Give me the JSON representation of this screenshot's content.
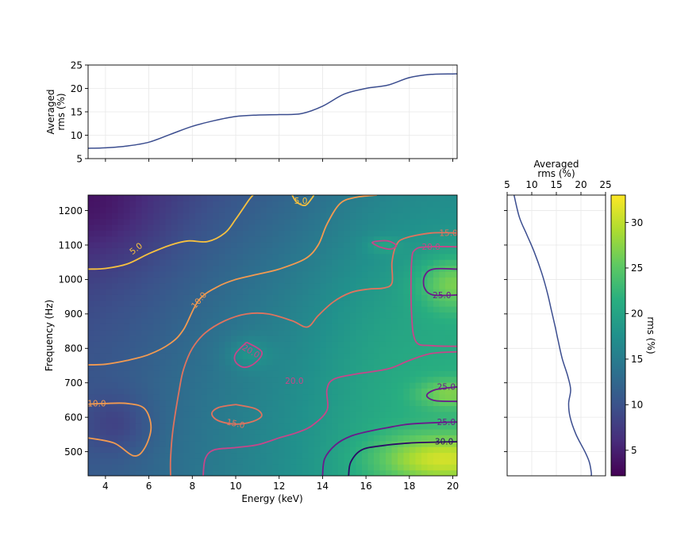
{
  "chart_data": [
    {
      "type": "line",
      "panel": "energy-profile",
      "ylabel_lines": [
        "Averaged",
        "rms (%)"
      ],
      "xlim": [
        3.2,
        20.2
      ],
      "ylim": [
        5,
        25
      ],
      "yticks": [
        5,
        10,
        15,
        20,
        25
      ],
      "grid": true,
      "series": [
        {
          "color": "#3b4d8f",
          "x": [
            3.2,
            4,
            5,
            6,
            7,
            8,
            9,
            10,
            11,
            12,
            13,
            14,
            15,
            16,
            17,
            18,
            19,
            20,
            20.2
          ],
          "y": [
            7.2,
            7.3,
            7.7,
            8.5,
            10.2,
            11.9,
            13.1,
            14.0,
            14.3,
            14.4,
            14.6,
            16.2,
            18.8,
            20.0,
            20.7,
            22.3,
            23.0,
            23.1,
            23.1
          ]
        }
      ]
    },
    {
      "type": "heatmap",
      "panel": "rms-map",
      "xlabel": "Energy (keV)",
      "ylabel": "Frequency (Hz)",
      "xlim": [
        3.2,
        20.2
      ],
      "ylim": [
        430,
        1245
      ],
      "xticks": [
        4,
        6,
        8,
        10,
        12,
        14,
        16,
        18,
        20
      ],
      "yticks": [
        500,
        600,
        700,
        800,
        900,
        1000,
        1100,
        1200
      ],
      "colormap": "viridis",
      "contour_levels": [
        5.0,
        10.0,
        15.0,
        20.0,
        25.0,
        30.0
      ],
      "contour_label_texts": [
        "5.0",
        "5.0",
        "10.0",
        "10.0",
        "15.0",
        "15.0",
        "20.0",
        "20.0",
        "20.0",
        "25.0",
        "25.0",
        "25.0",
        "30.0"
      ],
      "contours": [
        {
          "level": 5.0,
          "color": "#f7c13f",
          "points": [
            [
              3.2,
              1030
            ],
            [
              4,
              1032
            ],
            [
              5,
              1045
            ],
            [
              6,
              1075
            ],
            [
              7,
              1100
            ],
            [
              7.8,
              1112
            ],
            [
              8.7,
              1110
            ],
            [
              9.5,
              1135
            ],
            [
              10,
              1175
            ],
            [
              10.6,
              1230
            ],
            [
              10.8,
              1245
            ]
          ]
        },
        {
          "level": 5.0,
          "color": "#f7c13f",
          "points": [
            [
              12.6,
              1245
            ],
            [
              12.8,
              1225
            ],
            [
              13.2,
              1215
            ],
            [
              13.5,
              1235
            ],
            [
              13.6,
              1245
            ]
          ]
        },
        {
          "level": 10.0,
          "color": "#f39a50",
          "points": [
            [
              3.2,
              752
            ],
            [
              4,
              754
            ],
            [
              5,
              765
            ],
            [
              6,
              782
            ],
            [
              7,
              815
            ],
            [
              7.6,
              855
            ],
            [
              8.3,
              940
            ],
            [
              9.2,
              980
            ],
            [
              10,
              1000
            ],
            [
              11,
              1015
            ],
            [
              12,
              1030
            ],
            [
              13.2,
              1060
            ],
            [
              13.8,
              1100
            ],
            [
              14.2,
              1160
            ],
            [
              14.8,
              1220
            ],
            [
              15.5,
              1238
            ],
            [
              16.5,
              1245
            ]
          ]
        },
        {
          "level": 10.0,
          "color": "#f39a50",
          "points": [
            [
              3.2,
              540
            ],
            [
              4.4,
              525
            ],
            [
              5.3,
              488
            ],
            [
              5.8,
              510
            ],
            [
              6.1,
              570
            ],
            [
              5.8,
              625
            ],
            [
              5,
              640
            ],
            [
              4,
              640
            ],
            [
              3.2,
              638
            ]
          ]
        },
        {
          "level": 15.0,
          "color": "#e0735e",
          "points": [
            [
              7.0,
              430
            ],
            [
              7.0,
              480
            ],
            [
              7.1,
              560
            ],
            [
              7.4,
              680
            ],
            [
              7.6,
              740
            ],
            [
              8.0,
              800
            ],
            [
              8.6,
              845
            ],
            [
              9.5,
              880
            ],
            [
              10.5,
              900
            ],
            [
              11.5,
              900
            ],
            [
              12.6,
              880
            ],
            [
              13.3,
              862
            ],
            [
              13.8,
              895
            ],
            [
              14.5,
              935
            ],
            [
              15.3,
              962
            ],
            [
              16.1,
              972
            ],
            [
              16.8,
              975
            ],
            [
              17.2,
              990
            ],
            [
              17.2,
              1050
            ],
            [
              17.4,
              1100
            ],
            [
              17.8,
              1120
            ],
            [
              19.0,
              1135
            ],
            [
              20.2,
              1135
            ]
          ]
        },
        {
          "level": 15.0,
          "color": "#e0735e",
          "points": [
            [
              10.0,
              637
            ],
            [
              10.9,
              625
            ],
            [
              11.2,
              605
            ],
            [
              10.8,
              588
            ],
            [
              10.0,
              580
            ],
            [
              9.2,
              590
            ],
            [
              8.9,
              610
            ],
            [
              9.2,
              628
            ],
            [
              10.0,
              637
            ]
          ]
        },
        {
          "level": 20.0,
          "color": "#c6468a",
          "points": [
            [
              8.5,
              430
            ],
            [
              8.6,
              480
            ],
            [
              9.0,
              505
            ],
            [
              10,
              512
            ],
            [
              11,
              520
            ],
            [
              12,
              540
            ],
            [
              12.8,
              555
            ],
            [
              13.5,
              575
            ],
            [
              14.2,
              620
            ],
            [
              14.2,
              680
            ],
            [
              14.5,
              710
            ],
            [
              15.5,
              725
            ],
            [
              17,
              740
            ],
            [
              18,
              765
            ],
            [
              19,
              785
            ],
            [
              20.2,
              790
            ]
          ]
        },
        {
          "level": 20.0,
          "color": "#c6468a",
          "points": [
            [
              10.5,
              818
            ],
            [
              11.2,
              790
            ],
            [
              10.9,
              758
            ],
            [
              10.4,
              745
            ],
            [
              10.0,
              760
            ],
            [
              10.0,
              785
            ],
            [
              10.5,
              818
            ]
          ]
        },
        {
          "level": 20.0,
          "color": "#c6468a",
          "points": [
            [
              16.6,
              1095
            ],
            [
              17.1,
              1088
            ],
            [
              17.4,
              1098
            ],
            [
              17.0,
              1112
            ],
            [
              16.3,
              1108
            ],
            [
              16.6,
              1095
            ]
          ]
        },
        {
          "level": 20.0,
          "color": "#c6468a",
          "points": [
            [
              20.2,
              1095
            ],
            [
              19.0,
              1095
            ],
            [
              18.3,
              1088
            ],
            [
              18.1,
              1050
            ],
            [
              18.1,
              900
            ],
            [
              18.3,
              820
            ],
            [
              19.0,
              808
            ],
            [
              20.2,
              806
            ]
          ]
        },
        {
          "level": 25.0,
          "color": "#6a1a8c",
          "points": [
            [
              14.0,
              430
            ],
            [
              14.1,
              480
            ],
            [
              14.6,
              520
            ],
            [
              15.3,
              545
            ],
            [
              16.2,
              560
            ],
            [
              17,
              570
            ],
            [
              18,
              580
            ],
            [
              19.5,
              585
            ],
            [
              20.2,
              586
            ]
          ]
        },
        {
          "level": 25.0,
          "color": "#6a1a8c",
          "points": [
            [
              20.2,
              1030
            ],
            [
              19.1,
              1030
            ],
            [
              18.7,
              1010
            ],
            [
              18.7,
              975
            ],
            [
              19.1,
              955
            ],
            [
              20.2,
              955
            ]
          ]
        },
        {
          "level": 25.0,
          "color": "#6a1a8c",
          "points": [
            [
              20.2,
              688
            ],
            [
              19.2,
              680
            ],
            [
              18.8,
              663
            ],
            [
              19.2,
              648
            ],
            [
              20.2,
              646
            ]
          ]
        },
        {
          "level": 30.0,
          "color": "#2a0a66",
          "points": [
            [
              15.2,
              430
            ],
            [
              15.3,
              470
            ],
            [
              15.8,
              505
            ],
            [
              16.8,
              518
            ],
            [
              18,
              525
            ],
            [
              19.5,
              528
            ],
            [
              20.2,
              529
            ]
          ]
        }
      ]
    },
    {
      "type": "line",
      "panel": "frequency-profile",
      "xlabel_lines": [
        "Averaged",
        "rms (%)"
      ],
      "xlim": [
        5,
        25
      ],
      "ylim": [
        430,
        1245
      ],
      "xticks": [
        5,
        10,
        15,
        20,
        25
      ],
      "grid": true,
      "series": [
        {
          "color": "#3b4d8f",
          "x": [
            6.4,
            7.5,
            9.0,
            10.5,
            12.0,
            13.2,
            14.0,
            14.8,
            15.4,
            16.2,
            17.3,
            17.9,
            17.5,
            17.8,
            19.0,
            20.8,
            21.7,
            22.1,
            22.1
          ],
          "y": [
            1245,
            1180,
            1130,
            1080,
            1020,
            960,
            910,
            860,
            820,
            770,
            720,
            680,
            640,
            600,
            550,
            500,
            470,
            440,
            430
          ]
        }
      ]
    },
    {
      "type": "colorbar",
      "panel": "rms-colorbar",
      "label": "rms (%)",
      "range": [
        2.2,
        33.0
      ],
      "ticks": [
        5,
        10,
        15,
        20,
        25,
        30
      ],
      "colormap": "viridis"
    }
  ]
}
